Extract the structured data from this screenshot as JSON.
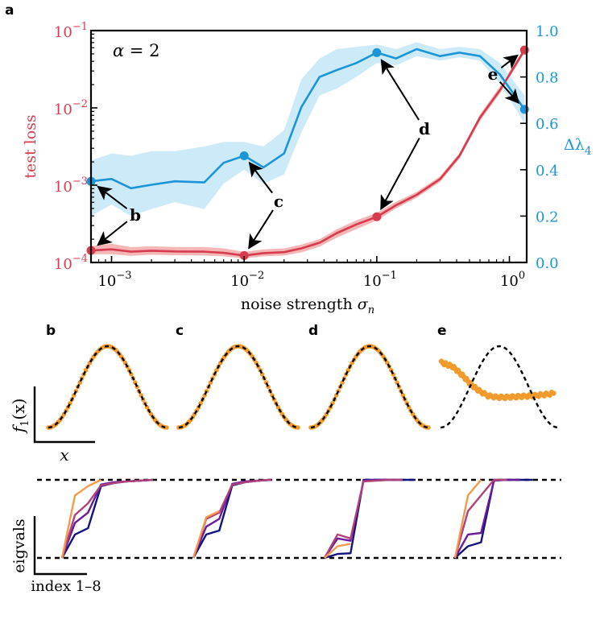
{
  "chart_data": [
    {
      "panel": "a",
      "type": "line",
      "xscale": "log",
      "xlabel": "noise strength σ",
      "xlabel_sub": "n",
      "xlim": [
        0.0007,
        1.35
      ],
      "xticks": [
        0.001,
        0.01,
        0.1,
        1
      ],
      "xtick_labels": [
        {
          "base": "10",
          "exp": "−3"
        },
        {
          "base": "10",
          "exp": "−2"
        },
        {
          "base": "10",
          "exp": "−1"
        },
        {
          "base": "10",
          "exp": "0"
        }
      ],
      "annotation_alpha": "α = 2",
      "left_axis": {
        "label": "test loss",
        "scale": "log",
        "ylim": [
          0.0001,
          0.1
        ],
        "yticks": [
          0.0001,
          0.001,
          0.01,
          0.1
        ],
        "ytick_labels": [
          {
            "base": "10",
            "exp": "−4"
          },
          {
            "base": "10",
            "exp": "−3"
          },
          {
            "base": "10",
            "exp": "−2"
          },
          {
            "base": "10",
            "exp": "−1"
          }
        ],
        "color": "#d63b4e"
      },
      "right_axis": {
        "label": "Δλ",
        "label_sub": "4",
        "ylim": [
          0,
          1.0
        ],
        "yticks": [
          0.0,
          0.2,
          0.4,
          0.6,
          0.8,
          1.0
        ],
        "ytick_labels": [
          "0.0",
          "0.2",
          "0.4",
          "0.6",
          "0.8",
          "1.0"
        ],
        "color": "#1b95d8"
      },
      "series": [
        {
          "name": "test loss",
          "axis": "left",
          "color": "#d63b4e",
          "band_color": "#f4b6b6",
          "x": [
            0.0007,
            0.001,
            0.0014,
            0.002,
            0.003,
            0.005,
            0.007,
            0.01,
            0.014,
            0.02,
            0.027,
            0.037,
            0.05,
            0.07,
            0.1,
            0.14,
            0.2,
            0.3,
            0.42,
            0.6,
            0.85,
            1.3
          ],
          "y": [
            0.000143,
            0.000148,
            0.000138,
            0.000142,
            0.000139,
            0.000138,
            0.000133,
            0.000123,
            0.000132,
            0.000136,
            0.000152,
            0.00018,
            0.00024,
            0.00031,
            0.00039,
            0.00055,
            0.00075,
            0.0012,
            0.0024,
            0.0075,
            0.017,
            0.056
          ],
          "y_low": [
            0.000128,
            0.000128,
            0.000122,
            0.000126,
            0.000124,
            0.000123,
            0.00012,
            0.000113,
            0.00012,
            0.000123,
            0.000135,
            0.00016,
            0.00021,
            0.00027,
            0.00035,
            0.0005,
            0.00069,
            0.0011,
            0.0022,
            0.0068,
            0.0155,
            0.052
          ],
          "y_high": [
            0.000163,
            0.000175,
            0.000158,
            0.000162,
            0.000159,
            0.000158,
            0.000152,
            0.000137,
            0.000148,
            0.000152,
            0.00017,
            0.0002,
            0.00027,
            0.00035,
            0.00044,
            0.00061,
            0.00082,
            0.0013,
            0.0026,
            0.0082,
            0.019,
            0.06
          ],
          "highlight_points": [
            {
              "x": 0.0007,
              "y": 0.000143
            },
            {
              "x": 0.01,
              "y": 0.000123
            },
            {
              "x": 0.1,
              "y": 0.00039
            },
            {
              "x": 1.3,
              "y": 0.056
            }
          ]
        },
        {
          "name": "Δλ4",
          "axis": "right",
          "color": "#1b95d8",
          "band_color": "#cdeaf9",
          "x": [
            0.0007,
            0.001,
            0.0014,
            0.002,
            0.003,
            0.005,
            0.007,
            0.01,
            0.014,
            0.02,
            0.027,
            0.037,
            0.05,
            0.07,
            0.1,
            0.14,
            0.2,
            0.3,
            0.42,
            0.6,
            0.85,
            1.3
          ],
          "y": [
            0.35,
            0.36,
            0.32,
            0.335,
            0.35,
            0.345,
            0.43,
            0.46,
            0.41,
            0.47,
            0.67,
            0.8,
            0.83,
            0.86,
            0.905,
            0.88,
            0.92,
            0.89,
            0.905,
            0.89,
            0.81,
            0.66
          ],
          "y_low": [
            0.2,
            0.25,
            0.2,
            0.23,
            0.26,
            0.23,
            0.34,
            0.4,
            0.34,
            0.38,
            0.56,
            0.72,
            0.75,
            0.8,
            0.86,
            0.85,
            0.89,
            0.87,
            0.885,
            0.87,
            0.77,
            0.6
          ],
          "y_high": [
            0.44,
            0.47,
            0.46,
            0.48,
            0.48,
            0.5,
            0.52,
            0.52,
            0.5,
            0.57,
            0.79,
            0.88,
            0.92,
            0.93,
            0.94,
            0.92,
            0.95,
            0.92,
            0.93,
            0.92,
            0.86,
            0.72
          ],
          "highlight_points": [
            {
              "x": 0.0007,
              "y": 0.35
            },
            {
              "x": 0.01,
              "y": 0.46
            },
            {
              "x": 0.1,
              "y": 0.905
            },
            {
              "x": 1.3,
              "y": 0.66
            }
          ]
        }
      ],
      "callouts": [
        {
          "label": "b",
          "targets": [
            {
              "series": 1,
              "x": 0.0007
            },
            {
              "series": 0,
              "x": 0.0007
            }
          ]
        },
        {
          "label": "c",
          "targets": [
            {
              "series": 1,
              "x": 0.01
            },
            {
              "series": 0,
              "x": 0.01
            }
          ]
        },
        {
          "label": "d",
          "targets": [
            {
              "series": 1,
              "x": 0.1
            },
            {
              "series": 0,
              "x": 0.1
            }
          ]
        },
        {
          "label": "e",
          "targets": [
            {
              "series": 0,
              "x": 1.3
            },
            {
              "series": 1,
              "x": 1.3
            }
          ]
        }
      ]
    },
    {
      "panels": [
        "b",
        "c",
        "d",
        "e"
      ],
      "type": "scatter",
      "ylabel": "f",
      "ylabel_sub": "1",
      "ylabel_arg": "(x)",
      "xlabel": "x",
      "reference": {
        "name": "cos target",
        "style": "dashed",
        "color": "#000000",
        "function": "cos(x)",
        "x_range": [
          -3.14159,
          3.14159
        ]
      },
      "points_color": "#f39a2c",
      "fits": [
        {
          "panel": "b",
          "kind": "cos",
          "amplitude": 1.0
        },
        {
          "panel": "c",
          "kind": "cos",
          "amplitude": 1.0
        },
        {
          "panel": "d",
          "kind": "cos",
          "amplitude": 1.0
        },
        {
          "panel": "e",
          "kind": "collapsed",
          "x": [
            -3.1,
            -2.8,
            -2.5,
            -2.2,
            -1.9,
            -1.6,
            -1.3,
            -1.0,
            -0.6,
            -0.2,
            0.2,
            0.6,
            1.0,
            1.4,
            1.8,
            2.2,
            2.6,
            3.0
          ],
          "y": [
            0.6,
            0.55,
            0.5,
            0.38,
            0.25,
            0.1,
            -0.02,
            -0.12,
            -0.22,
            -0.25,
            -0.26,
            -0.25,
            -0.24,
            -0.23,
            -0.22,
            -0.2,
            -0.18,
            -0.15
          ]
        }
      ]
    },
    {
      "panels": [
        "b",
        "c",
        "d",
        "e"
      ],
      "type": "line",
      "ylabel": "eigvals",
      "xlabel": "index 1–8",
      "reference_lines": [
        0,
        1
      ],
      "series_colors": [
        "#12127f",
        "#6a1b9a",
        "#b0417a",
        "#f39a4c"
      ],
      "curves": [
        {
          "panel": "b",
          "series": [
            [
              0.0,
              0.3,
              0.38,
              0.92,
              0.96,
              0.98,
              0.99,
              1.0
            ],
            [
              0.0,
              0.45,
              0.58,
              0.94,
              0.97,
              0.98,
              0.99,
              1.0
            ],
            [
              0.0,
              0.55,
              0.7,
              0.93,
              0.96,
              0.98,
              0.99,
              1.0
            ],
            [
              0.0,
              0.8,
              0.92,
              1.0
            ]
          ]
        },
        {
          "panel": "c",
          "series": [
            [
              0.0,
              0.3,
              0.35,
              0.93,
              0.97,
              0.99,
              1.0
            ],
            [
              0.0,
              0.4,
              0.5,
              0.95,
              0.98,
              0.99,
              1.0
            ],
            [
              0.0,
              0.5,
              0.58,
              0.94,
              0.97,
              0.99,
              1.0
            ],
            [
              0.0,
              0.52,
              0.6
            ]
          ]
        },
        {
          "panel": "d",
          "series": [
            [
              0.0,
              0.05,
              0.06,
              1.0,
              1.0,
              1.0,
              1.0,
              1.0
            ],
            [
              0.0,
              0.25,
              0.22,
              0.99,
              1.0,
              1.0,
              1.0
            ],
            [
              0.0,
              0.3,
              0.25,
              0.98,
              0.99,
              1.0,
              1.0
            ],
            [
              0.0,
              0.15,
              0.18
            ]
          ]
        },
        {
          "panel": "e",
          "series": [
            [
              0.0,
              0.15,
              0.2,
              1.0,
              1.0,
              1.0,
              1.0
            ],
            [
              0.0,
              0.3,
              0.32,
              0.99,
              1.0,
              1.0
            ],
            [
              0.0,
              0.6,
              0.8,
              1.0,
              1.0
            ],
            [
              0.0,
              0.8,
              1.0
            ]
          ]
        }
      ]
    }
  ]
}
